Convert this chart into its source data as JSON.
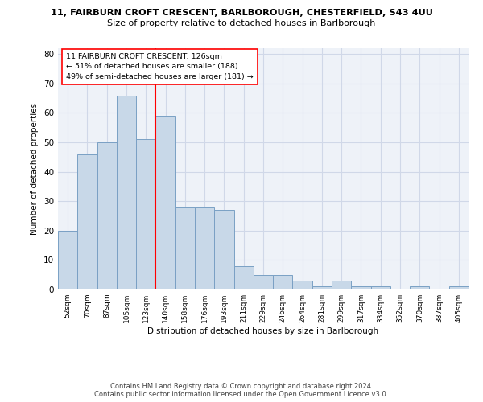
{
  "title_line1": "11, FAIRBURN CROFT CRESCENT, BARLBOROUGH, CHESTERFIELD, S43 4UU",
  "title_line2": "Size of property relative to detached houses in Barlborough",
  "xlabel": "Distribution of detached houses by size in Barlborough",
  "ylabel": "Number of detached properties",
  "categories": [
    "52sqm",
    "70sqm",
    "87sqm",
    "105sqm",
    "123sqm",
    "140sqm",
    "158sqm",
    "176sqm",
    "193sqm",
    "211sqm",
    "229sqm",
    "246sqm",
    "264sqm",
    "281sqm",
    "299sqm",
    "317sqm",
    "334sqm",
    "352sqm",
    "370sqm",
    "387sqm",
    "405sqm"
  ],
  "values": [
    20,
    46,
    50,
    66,
    51,
    59,
    28,
    28,
    27,
    8,
    5,
    5,
    3,
    1,
    3,
    1,
    1,
    0,
    1,
    0,
    1
  ],
  "bar_color": "#c8d8e8",
  "bar_edge_color": "#7aa0c4",
  "grid_color": "#d0d8e8",
  "background_color": "#eef2f8",
  "red_line_x": 4.5,
  "annotation_text_line1": "11 FAIRBURN CROFT CRESCENT: 126sqm",
  "annotation_text_line2": "← 51% of detached houses are smaller (188)",
  "annotation_text_line3": "49% of semi-detached houses are larger (181) →",
  "ylim": [
    0,
    82
  ],
  "yticks": [
    0,
    10,
    20,
    30,
    40,
    50,
    60,
    70,
    80
  ],
  "footer_line1": "Contains HM Land Registry data © Crown copyright and database right 2024.",
  "footer_line2": "Contains public sector information licensed under the Open Government Licence v3.0."
}
